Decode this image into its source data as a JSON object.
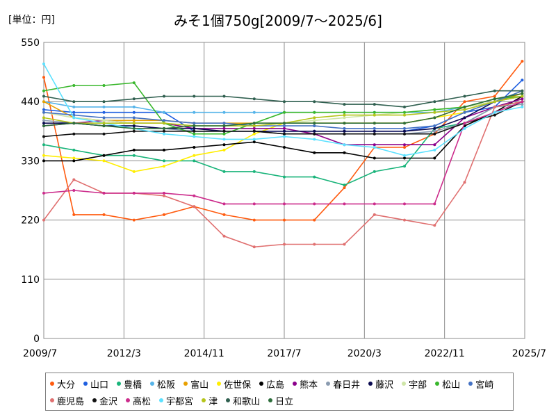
{
  "header": {
    "unit_label": "[単位：円]"
  },
  "chart_data": {
    "type": "line",
    "title": "みそ1個750g[2009/7～2025/6]",
    "xlabel": "",
    "ylabel": "",
    "ylim": [
      0,
      550
    ],
    "yticks": [
      "0",
      "110",
      "220",
      "330",
      "440",
      "550"
    ],
    "xticks": [
      "2009/7",
      "2012/3",
      "2014/11",
      "2017/7",
      "2020/3",
      "2022/11",
      "2025/7"
    ],
    "grid": true,
    "legend_position": "bottom",
    "x": [
      "2009/7",
      "2010/7",
      "2011/7",
      "2012/7",
      "2013/7",
      "2014/7",
      "2015/7",
      "2016/7",
      "2017/7",
      "2018/7",
      "2019/7",
      "2020/7",
      "2021/7",
      "2022/7",
      "2023/7",
      "2024/7",
      "2025/6"
    ],
    "series": [
      {
        "name": "大分",
        "color": "#ff5b0f",
        "values": [
          485,
          230,
          230,
          220,
          230,
          245,
          230,
          220,
          220,
          220,
          280,
          355,
          355,
          380,
          440,
          450,
          515
        ]
      },
      {
        "name": "山口",
        "color": "#1f5fe0",
        "values": [
          425,
          420,
          420,
          420,
          420,
          385,
          385,
          385,
          385,
          385,
          385,
          385,
          385,
          395,
          420,
          430,
          480
        ]
      },
      {
        "name": "豊橋",
        "color": "#19b47a",
        "values": [
          360,
          350,
          340,
          340,
          330,
          330,
          310,
          310,
          300,
          300,
          285,
          310,
          320,
          390,
          400,
          430,
          440
        ]
      },
      {
        "name": "松阪",
        "color": "#56b4e9",
        "values": [
          440,
          430,
          430,
          430,
          420,
          420,
          420,
          420,
          420,
          420,
          420,
          420,
          420,
          420,
          430,
          440,
          450
        ]
      },
      {
        "name": "富山",
        "color": "#e8a000",
        "values": [
          440,
          410,
          405,
          405,
          405,
          400,
          400,
          400,
          400,
          400,
          400,
          400,
          400,
          410,
          430,
          440,
          455
        ]
      },
      {
        "name": "佐世保",
        "color": "#ffee00",
        "values": [
          340,
          335,
          330,
          310,
          320,
          340,
          350,
          380,
          400,
          400,
          400,
          400,
          400,
          410,
          420,
          440,
          460
        ]
      },
      {
        "name": "広島",
        "color": "#000000",
        "values": [
          330,
          330,
          340,
          350,
          350,
          355,
          360,
          365,
          355,
          345,
          345,
          335,
          335,
          335,
          395,
          420,
          450
        ]
      },
      {
        "name": "熊本",
        "color": "#8b008b",
        "values": [
          395,
          400,
          405,
          400,
          400,
          390,
          390,
          390,
          390,
          380,
          360,
          360,
          360,
          360,
          410,
          430,
          445
        ]
      },
      {
        "name": "春日井",
        "color": "#8a9bb0",
        "values": [
          405,
          400,
          395,
          395,
          390,
          385,
          385,
          385,
          380,
          380,
          380,
          380,
          380,
          385,
          400,
          430,
          435
        ]
      },
      {
        "name": "藤沢",
        "color": "#0a0a50",
        "values": [
          400,
          400,
          395,
          395,
          390,
          390,
          385,
          385,
          385,
          385,
          385,
          385,
          385,
          390,
          410,
          440,
          450
        ]
      },
      {
        "name": "宇部",
        "color": "#cfe6a8",
        "values": [
          420,
          410,
          405,
          400,
          400,
          395,
          395,
          395,
          400,
          405,
          410,
          415,
          420,
          425,
          430,
          440,
          450
        ]
      },
      {
        "name": "松山",
        "color": "#39b72c",
        "values": [
          460,
          470,
          470,
          475,
          400,
          380,
          380,
          400,
          420,
          420,
          420,
          420,
          420,
          425,
          430,
          445,
          450
        ]
      },
      {
        "name": "宮崎",
        "color": "#4472c4",
        "values": [
          420,
          415,
          410,
          410,
          405,
          400,
          400,
          395,
          395,
          395,
          390,
          390,
          390,
          395,
          420,
          440,
          460
        ]
      },
      {
        "name": "鹿児島",
        "color": "#e07070",
        "values": [
          220,
          295,
          270,
          270,
          265,
          245,
          190,
          170,
          175,
          175,
          175,
          230,
          220,
          210,
          290,
          430,
          440
        ]
      },
      {
        "name": "金沢",
        "color": "#111111",
        "values": [
          375,
          380,
          380,
          385,
          385,
          385,
          385,
          385,
          380,
          380,
          380,
          380,
          380,
          380,
          400,
          415,
          440
        ]
      },
      {
        "name": "高松",
        "color": "#cc2c8c",
        "values": [
          270,
          275,
          270,
          270,
          270,
          265,
          250,
          250,
          250,
          250,
          250,
          250,
          250,
          250,
          400,
          420,
          440
        ]
      },
      {
        "name": "宇都宮",
        "color": "#5ce1ff",
        "values": [
          510,
          410,
          400,
          390,
          380,
          375,
          370,
          370,
          375,
          370,
          360,
          355,
          340,
          350,
          390,
          420,
          430
        ]
      },
      {
        "name": "津",
        "color": "#b5c41a",
        "values": [
          410,
          400,
          400,
          400,
          400,
          395,
          395,
          395,
          400,
          410,
          415,
          415,
          415,
          420,
          425,
          440,
          450
        ]
      },
      {
        "name": "和歌山",
        "color": "#2f5f4f",
        "values": [
          450,
          440,
          440,
          445,
          450,
          450,
          450,
          445,
          440,
          440,
          435,
          435,
          430,
          440,
          450,
          460,
          460
        ]
      },
      {
        "name": "日立",
        "color": "#2d6e3b",
        "values": [
          395,
          400,
          395,
          390,
          390,
          395,
          395,
          400,
          400,
          400,
          400,
          400,
          400,
          410,
          430,
          445,
          455
        ]
      }
    ]
  }
}
